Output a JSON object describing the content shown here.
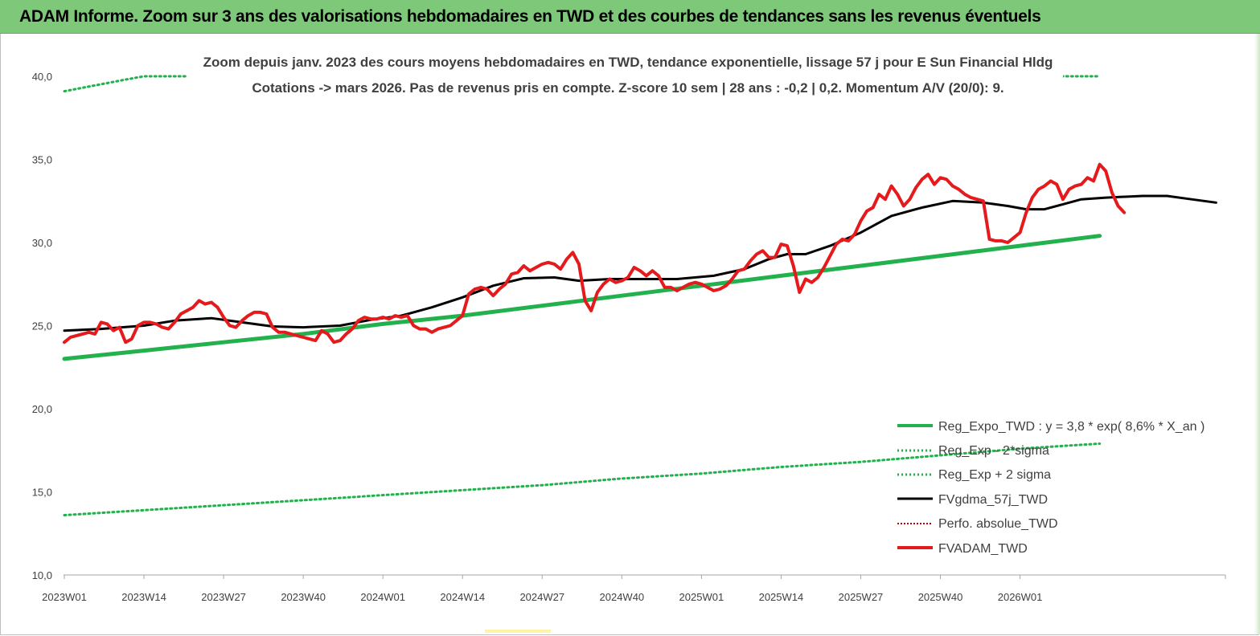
{
  "header": {
    "title": "ADAM Informe. Zoom sur 3 ans des valorisations hebdomadaires en TWD et des courbes de tendances sans les revenus éventuels"
  },
  "colors": {
    "banner": "#7ec87a",
    "reg_expo": "#22b14c",
    "sigma": "#22b14c",
    "fvgdma": "#000000",
    "perfo": "#c00000",
    "fvadam": "#e41a1c"
  },
  "chart_data": {
    "type": "line",
    "subtitle_1": "Zoom depuis janv. 2023 des cours moyens hebdomadaires en TWD, tendance exponentielle, lissage 57 j pour E Sun Financial Hldg",
    "subtitle_2": "Cotations -> mars 2026. Pas de revenus pris en compte. Z-score 10 sem | 28 ans : -0,2 | 0,2. Momentum A/V (20/0): 9.",
    "ylim": [
      10,
      40
    ],
    "yticks": [
      "10,0",
      "15,0",
      "20,0",
      "25,0",
      "30,0",
      "35,0",
      "40,0"
    ],
    "xlabels": [
      "2023W01",
      "2023W14",
      "2023W27",
      "2023W40",
      "2024W01",
      "2024W14",
      "2024W27",
      "2024W40",
      "2025W01",
      "2025W14",
      "2025W27",
      "2025W40",
      "2026W01"
    ],
    "legend_position": "bottom-right",
    "grid": false,
    "series": [
      {
        "name": "Reg_Expo_TWD : y = 3,8 * exp( 8,6% * X_an )",
        "style": "solid-thick",
        "values": [
          [
            0,
            23.0
          ],
          [
            13,
            23.5
          ],
          [
            26,
            24.0
          ],
          [
            39,
            24.5
          ],
          [
            52,
            25.1
          ],
          [
            65,
            25.6
          ],
          [
            78,
            26.2
          ],
          [
            91,
            26.8
          ],
          [
            104,
            27.4
          ],
          [
            117,
            28.0
          ],
          [
            130,
            28.6
          ],
          [
            143,
            29.2
          ],
          [
            156,
            29.8
          ],
          [
            169,
            30.4
          ]
        ]
      },
      {
        "name": "Reg_Exp - 2*sigma",
        "style": "dotted",
        "values": [
          [
            0,
            13.6
          ],
          [
            13,
            13.9
          ],
          [
            26,
            14.2
          ],
          [
            39,
            14.5
          ],
          [
            52,
            14.8
          ],
          [
            65,
            15.1
          ],
          [
            78,
            15.4
          ],
          [
            91,
            15.8
          ],
          [
            104,
            16.1
          ],
          [
            117,
            16.5
          ],
          [
            130,
            16.8
          ],
          [
            143,
            17.2
          ],
          [
            156,
            17.6
          ],
          [
            169,
            17.9
          ]
        ]
      },
      {
        "name": "Reg_Exp + 2 sigma",
        "style": "dotted",
        "values": [
          [
            0,
            39.1
          ],
          [
            10,
            39.8
          ],
          [
            13,
            40.0
          ],
          [
            169,
            40.0
          ]
        ]
      },
      {
        "name": "FVgdma_57j_TWD",
        "style": "solid",
        "values": [
          [
            0,
            24.7
          ],
          [
            6,
            24.8
          ],
          [
            13,
            25.0
          ],
          [
            18,
            25.3
          ],
          [
            24,
            25.45
          ],
          [
            29,
            25.2
          ],
          [
            34,
            24.95
          ],
          [
            39,
            24.9
          ],
          [
            45,
            25.0
          ],
          [
            50,
            25.35
          ],
          [
            55,
            25.6
          ],
          [
            60,
            26.1
          ],
          [
            65,
            26.7
          ],
          [
            70,
            27.4
          ],
          [
            75,
            27.85
          ],
          [
            80,
            27.9
          ],
          [
            84,
            27.7
          ],
          [
            89,
            27.8
          ],
          [
            95,
            27.8
          ],
          [
            100,
            27.8
          ],
          [
            106,
            28.0
          ],
          [
            111,
            28.4
          ],
          [
            115,
            29.0
          ],
          [
            118,
            29.3
          ],
          [
            121,
            29.3
          ],
          [
            125,
            29.8
          ],
          [
            130,
            30.6
          ],
          [
            135,
            31.6
          ],
          [
            140,
            32.1
          ],
          [
            145,
            32.5
          ],
          [
            150,
            32.4
          ],
          [
            154,
            32.2
          ],
          [
            157,
            32.0
          ],
          [
            160,
            32.0
          ],
          [
            163,
            32.3
          ],
          [
            166,
            32.6
          ],
          [
            170,
            32.7
          ],
          [
            176,
            32.8
          ],
          [
            180,
            32.8
          ],
          [
            184,
            32.6
          ],
          [
            188,
            32.4
          ]
        ]
      },
      {
        "name": "Perfo. absolue_TWD",
        "style": "dotted-red",
        "values": []
      },
      {
        "name": "FVADAM_TWD",
        "style": "solid-thick-red",
        "values": [
          [
            0,
            24.0
          ],
          [
            1,
            24.3
          ],
          [
            2,
            24.4
          ],
          [
            3,
            24.5
          ],
          [
            4,
            24.6
          ],
          [
            5,
            24.5
          ],
          [
            6,
            25.2
          ],
          [
            7,
            25.1
          ],
          [
            8,
            24.7
          ],
          [
            9,
            24.9
          ],
          [
            10,
            24.0
          ],
          [
            11,
            24.2
          ],
          [
            12,
            25.0
          ],
          [
            13,
            25.2
          ],
          [
            14,
            25.2
          ],
          [
            15,
            25.1
          ],
          [
            16,
            24.9
          ],
          [
            17,
            24.8
          ],
          [
            18,
            25.2
          ],
          [
            19,
            25.7
          ],
          [
            20,
            25.9
          ],
          [
            21,
            26.1
          ],
          [
            22,
            26.5
          ],
          [
            23,
            26.3
          ],
          [
            24,
            26.4
          ],
          [
            25,
            26.1
          ],
          [
            26,
            25.5
          ],
          [
            27,
            25.0
          ],
          [
            28,
            24.9
          ],
          [
            29,
            25.3
          ],
          [
            30,
            25.6
          ],
          [
            31,
            25.8
          ],
          [
            32,
            25.8
          ],
          [
            33,
            25.7
          ],
          [
            34,
            24.9
          ],
          [
            35,
            24.6
          ],
          [
            36,
            24.6
          ],
          [
            37,
            24.5
          ],
          [
            38,
            24.4
          ],
          [
            39,
            24.3
          ],
          [
            40,
            24.2
          ],
          [
            41,
            24.1
          ],
          [
            42,
            24.7
          ],
          [
            43,
            24.5
          ],
          [
            44,
            24.0
          ],
          [
            45,
            24.1
          ],
          [
            46,
            24.5
          ],
          [
            47,
            24.8
          ],
          [
            48,
            25.3
          ],
          [
            49,
            25.5
          ],
          [
            50,
            25.4
          ],
          [
            51,
            25.4
          ],
          [
            52,
            25.5
          ],
          [
            53,
            25.4
          ],
          [
            54,
            25.6
          ],
          [
            55,
            25.5
          ],
          [
            56,
            25.6
          ],
          [
            57,
            25.0
          ],
          [
            58,
            24.8
          ],
          [
            59,
            24.8
          ],
          [
            60,
            24.6
          ],
          [
            61,
            24.8
          ],
          [
            62,
            24.9
          ],
          [
            63,
            25.0
          ],
          [
            64,
            25.3
          ],
          [
            65,
            25.6
          ],
          [
            66,
            26.9
          ],
          [
            67,
            27.2
          ],
          [
            68,
            27.3
          ],
          [
            69,
            27.2
          ],
          [
            70,
            26.8
          ],
          [
            71,
            27.2
          ],
          [
            72,
            27.5
          ],
          [
            73,
            28.1
          ],
          [
            74,
            28.2
          ],
          [
            75,
            28.6
          ],
          [
            76,
            28.3
          ],
          [
            77,
            28.5
          ],
          [
            78,
            28.7
          ],
          [
            79,
            28.8
          ],
          [
            80,
            28.7
          ],
          [
            81,
            28.4
          ],
          [
            82,
            29.0
          ],
          [
            83,
            29.4
          ],
          [
            84,
            28.7
          ],
          [
            85,
            26.5
          ],
          [
            86,
            25.9
          ],
          [
            87,
            27.0
          ],
          [
            88,
            27.5
          ],
          [
            89,
            27.8
          ],
          [
            90,
            27.6
          ],
          [
            91,
            27.7
          ],
          [
            92,
            27.9
          ],
          [
            93,
            28.5
          ],
          [
            94,
            28.3
          ],
          [
            95,
            28.0
          ],
          [
            96,
            28.3
          ],
          [
            97,
            28.0
          ],
          [
            98,
            27.3
          ],
          [
            99,
            27.3
          ],
          [
            100,
            27.1
          ],
          [
            101,
            27.3
          ],
          [
            102,
            27.5
          ],
          [
            103,
            27.6
          ],
          [
            104,
            27.5
          ],
          [
            105,
            27.3
          ],
          [
            106,
            27.1
          ],
          [
            107,
            27.2
          ],
          [
            108,
            27.4
          ],
          [
            109,
            27.8
          ],
          [
            110,
            28.3
          ],
          [
            111,
            28.4
          ],
          [
            112,
            28.9
          ],
          [
            113,
            29.3
          ],
          [
            114,
            29.5
          ],
          [
            115,
            29.1
          ],
          [
            116,
            29.1
          ],
          [
            117,
            29.9
          ],
          [
            118,
            29.8
          ],
          [
            119,
            28.6
          ],
          [
            120,
            27.0
          ],
          [
            121,
            27.8
          ],
          [
            122,
            27.6
          ],
          [
            123,
            27.9
          ],
          [
            124,
            28.5
          ],
          [
            125,
            29.2
          ],
          [
            126,
            29.9
          ],
          [
            127,
            30.2
          ],
          [
            128,
            30.1
          ],
          [
            129,
            30.5
          ],
          [
            130,
            31.3
          ],
          [
            131,
            31.9
          ],
          [
            132,
            32.1
          ],
          [
            133,
            32.9
          ],
          [
            134,
            32.6
          ],
          [
            135,
            33.4
          ],
          [
            136,
            32.9
          ],
          [
            137,
            32.2
          ],
          [
            138,
            32.6
          ],
          [
            139,
            33.3
          ],
          [
            140,
            33.8
          ],
          [
            141,
            34.1
          ],
          [
            142,
            33.5
          ],
          [
            143,
            33.9
          ],
          [
            144,
            33.8
          ],
          [
            145,
            33.4
          ],
          [
            146,
            33.2
          ],
          [
            147,
            32.9
          ],
          [
            148,
            32.7
          ],
          [
            149,
            32.6
          ],
          [
            150,
            32.5
          ],
          [
            151,
            30.2
          ],
          [
            152,
            30.1
          ],
          [
            153,
            30.1
          ],
          [
            154,
            30.0
          ],
          [
            155,
            30.3
          ],
          [
            156,
            30.6
          ],
          [
            157,
            31.8
          ],
          [
            158,
            32.7
          ],
          [
            159,
            33.2
          ],
          [
            160,
            33.4
          ],
          [
            161,
            33.7
          ],
          [
            162,
            33.5
          ],
          [
            163,
            32.6
          ],
          [
            164,
            33.2
          ],
          [
            165,
            33.4
          ],
          [
            166,
            33.5
          ],
          [
            167,
            33.9
          ],
          [
            168,
            33.7
          ],
          [
            169,
            34.7
          ],
          [
            170,
            34.3
          ],
          [
            171,
            33.0
          ],
          [
            172,
            32.2
          ],
          [
            173,
            31.8
          ]
        ]
      }
    ]
  }
}
